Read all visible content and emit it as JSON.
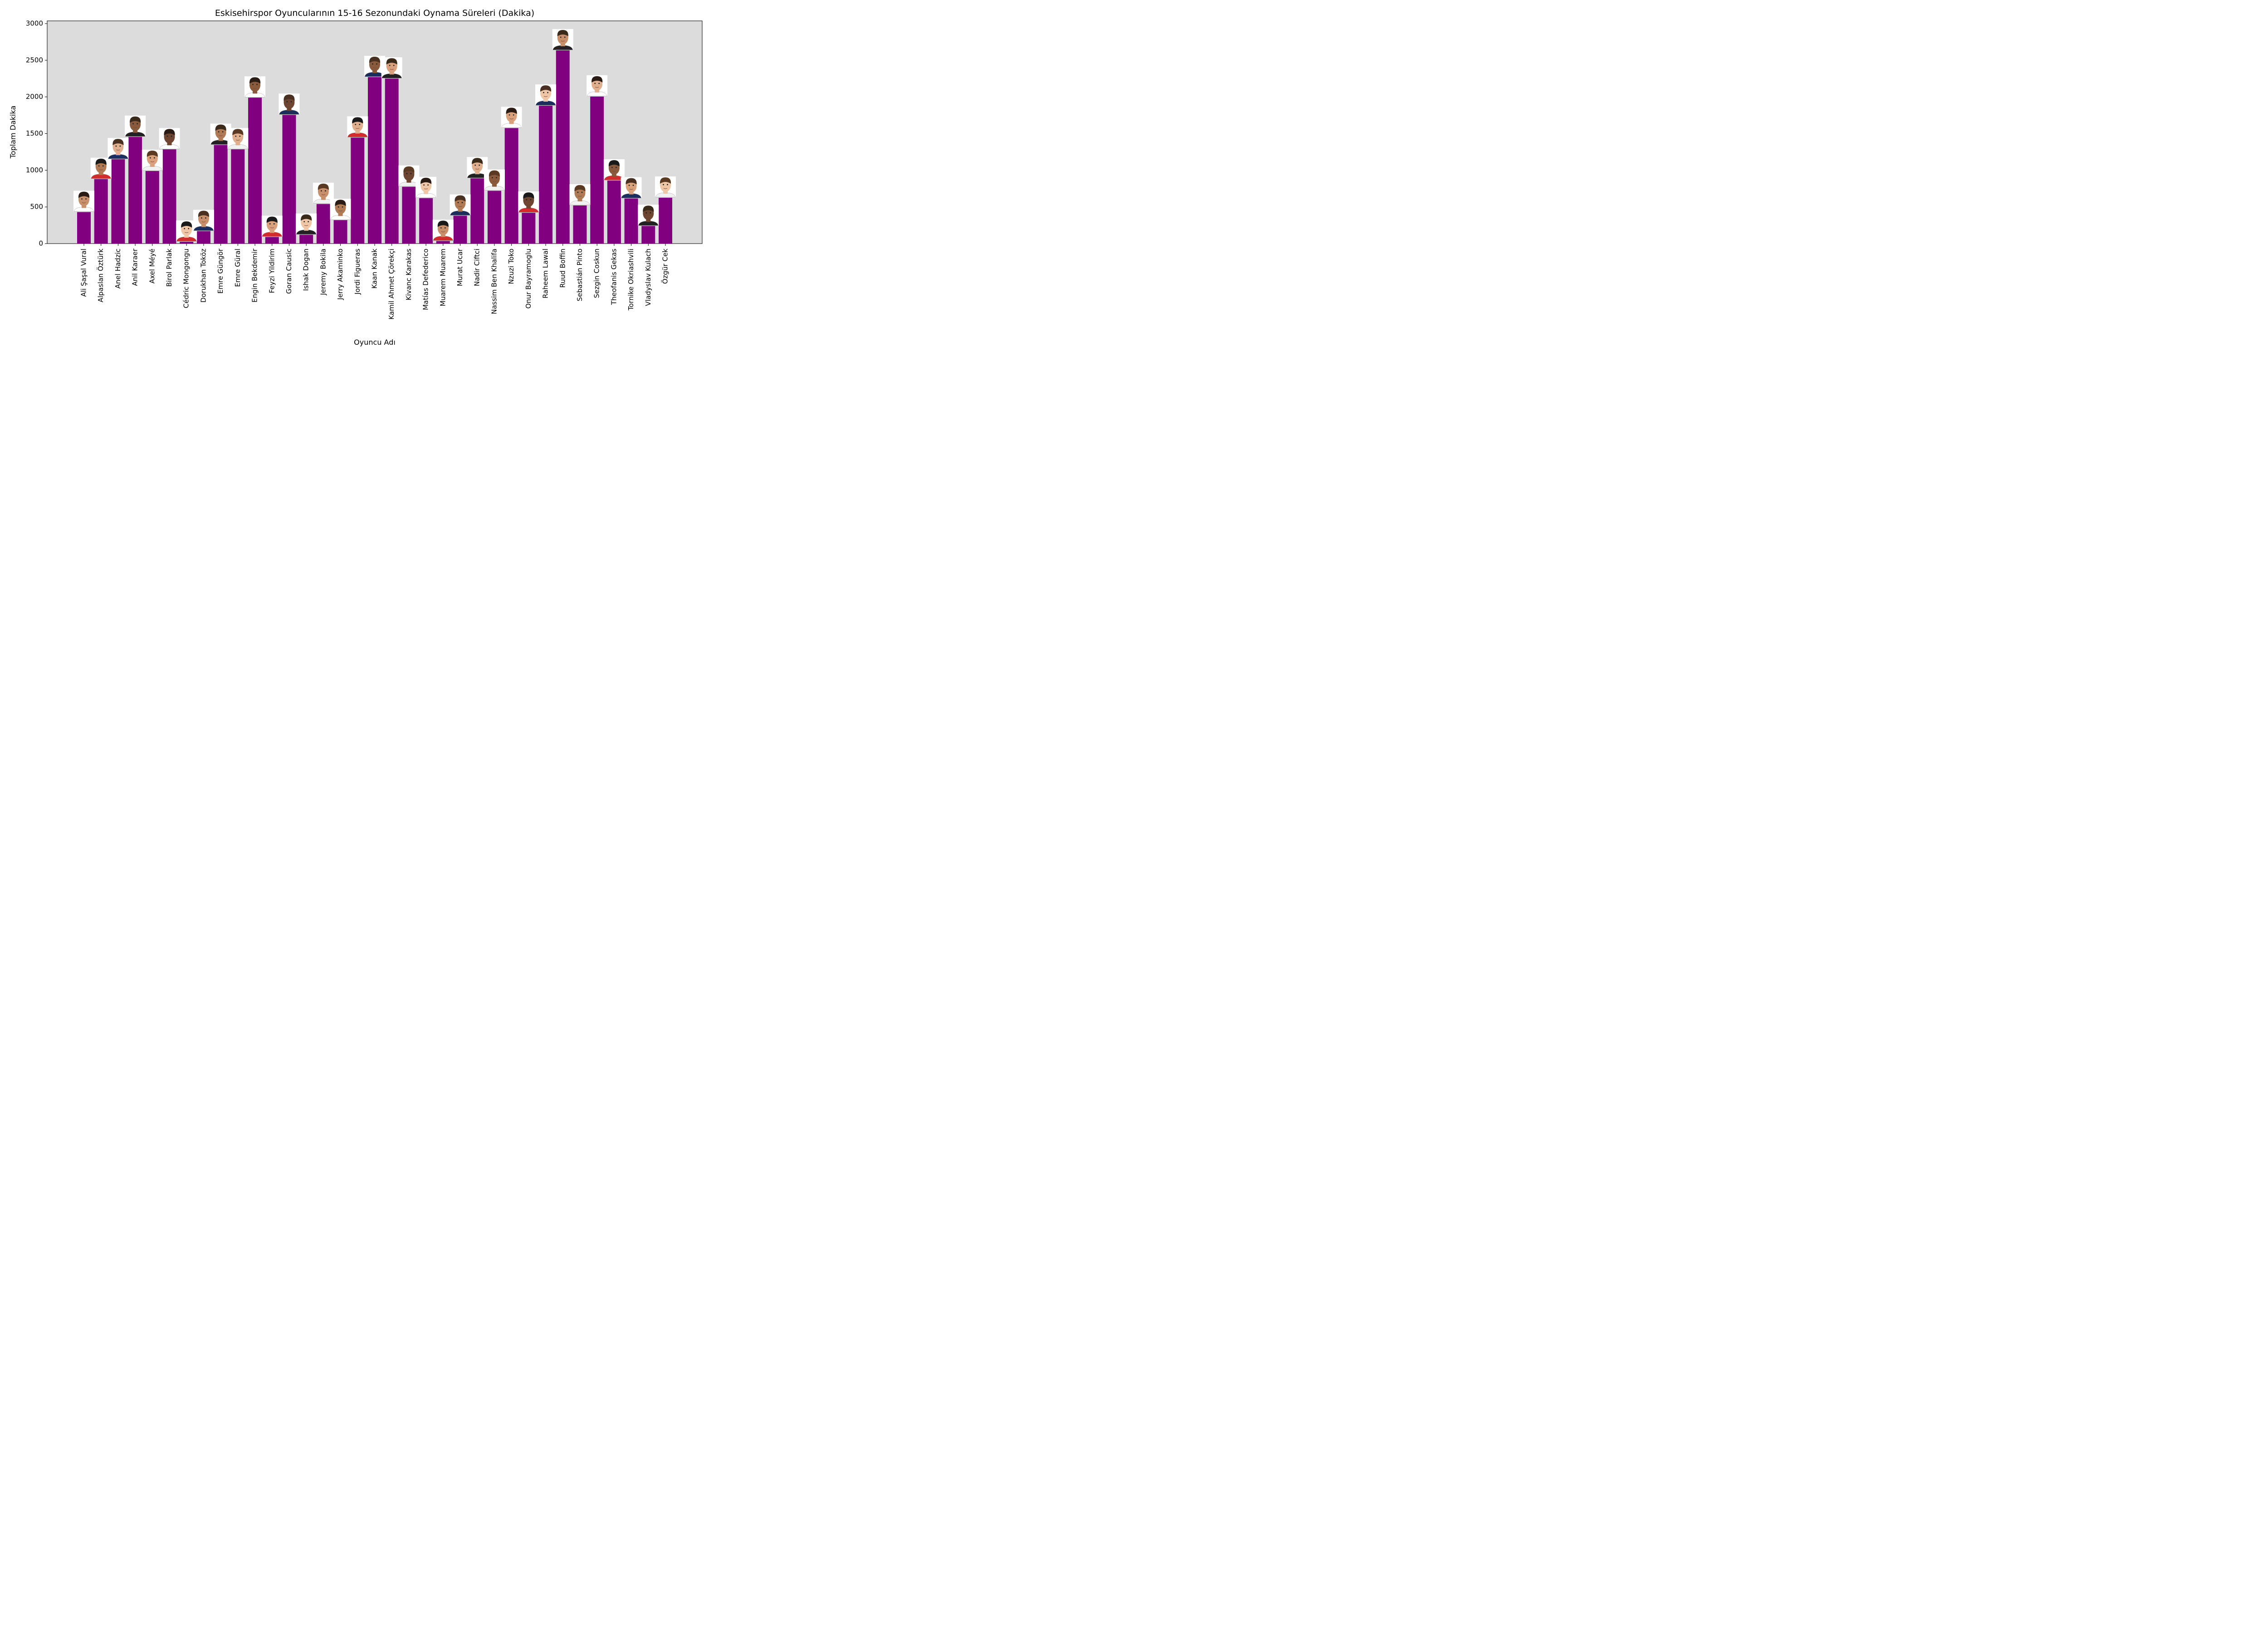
{
  "chart_data": {
    "type": "bar",
    "title": "Eskisehirspor Oyuncularının 15-16 Sezonundaki Oynama Süreleri (Dakika)",
    "xlabel": "Oyuncu Adı",
    "ylabel": "Toplam Dakika",
    "ylim": [
      0,
      3050
    ],
    "yticks": [
      0,
      500,
      1000,
      1500,
      2000,
      2500,
      3000
    ],
    "grid": false,
    "bar_color": "#800080",
    "plot_background": "#dcdcdc",
    "categories": [
      "Ali Şaşal Vural",
      "Alpaslan Öztürk",
      "Anel Hadzic",
      "Anil Karaer",
      "Axel Méyé",
      "Birol Parlak",
      "Cédric Mongongu",
      "Dorukhan Toköz",
      "Emre Güngör",
      "Emre Güral",
      "Engin Bekdemir",
      "Feyzi Yildirim",
      "Goran Causic",
      "Ishak Dogan",
      "Jeremy Bokila",
      "Jerry Akaminko",
      "Jordi Figueras",
      "Kaan Kanak",
      "Kamil Ahmet Çörekçi",
      "Kivanc Karakas",
      "Matías Defederico",
      "Muarem Muarem",
      "Murat Ucar",
      "Nadir Ciftci",
      "Nassim Ben Khalifa",
      "Nzuzi Toko",
      "Onur Bayramoglu",
      "Raheem Lawal",
      "Ruud Boffin",
      "Sebastián Pinto",
      "Sezgin Coskun",
      "Theofanis Gekas",
      "Tornike Okriashvili",
      "Vladyslav Kulach",
      "Özgür Cek"
    ],
    "values": [
      430,
      880,
      1150,
      1455,
      990,
      1285,
      25,
      170,
      1345,
      1285,
      1990,
      90,
      1755,
      120,
      540,
      320,
      1445,
      2270,
      2250,
      775,
      620,
      35,
      380,
      890,
      720,
      1575,
      420,
      1880,
      2635,
      520,
      2005,
      860,
      615,
      240,
      625
    ],
    "player_photos": "player headshot above each bar"
  }
}
